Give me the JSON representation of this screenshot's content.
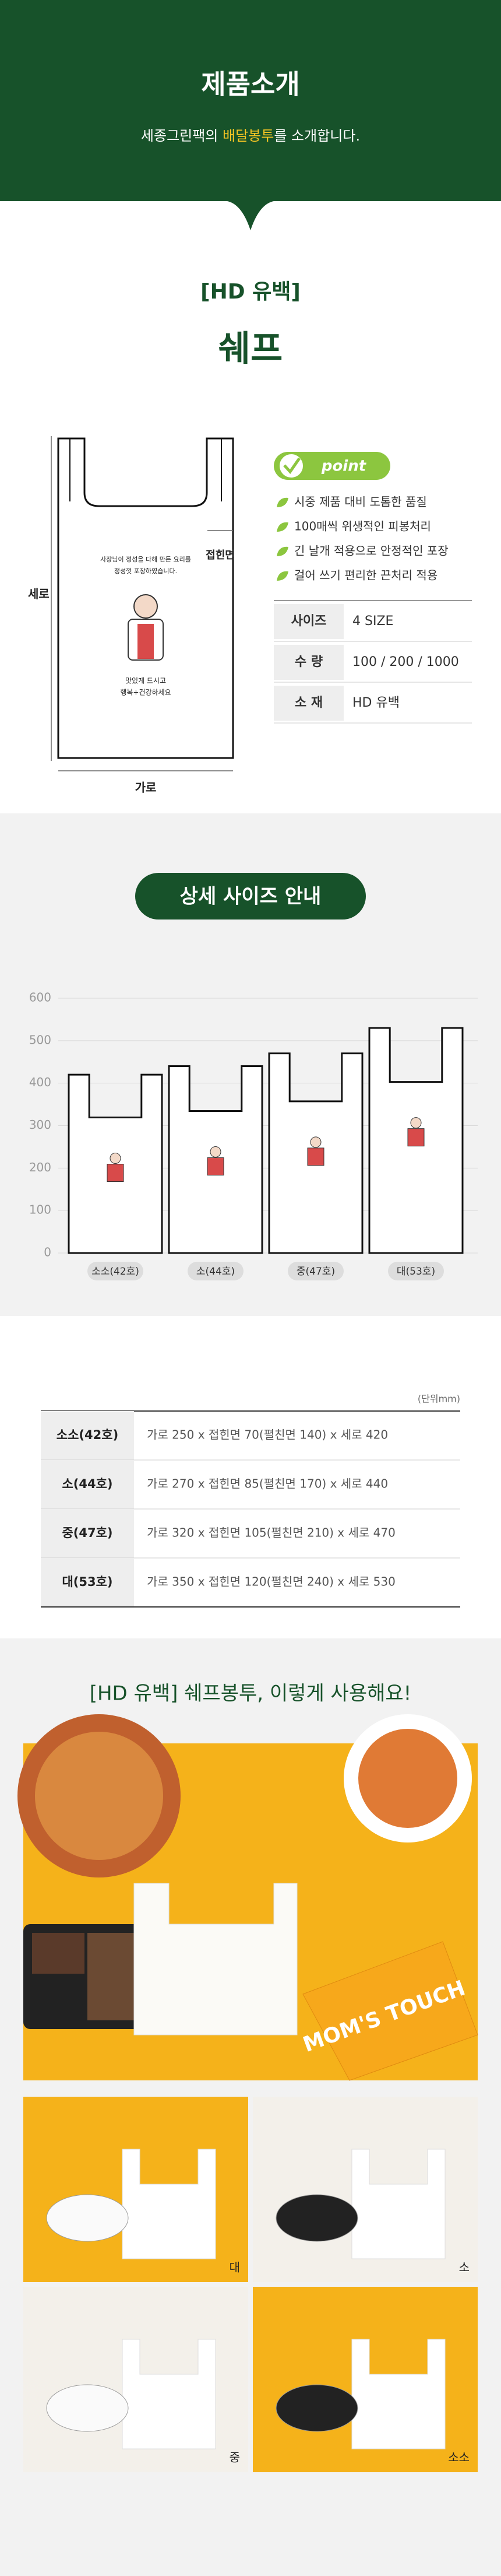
{
  "header": {
    "title": "제품소개",
    "subtitle": [
      "세종그린팩의 ",
      "배달봉투",
      "를 소개합니다."
    ]
  },
  "product": {
    "tag": "[HD 유백]",
    "name": "쉐프",
    "diagram": {
      "height_label": "세로",
      "width_label": "가로",
      "gusset_label": "접힌면",
      "bag_text": [
        "사장님이 정성을 다해 만든 요리를",
        "정성껏 포장하였습니다."
      ],
      "bag_footer": [
        "맛있게 드시고",
        "행복+건강하세요"
      ]
    },
    "point_badge": "point",
    "points": [
      "시중 제품 대비 도톰한 품질",
      "100매씩 위생적인 피봉처리",
      "긴 날개 적용으로 안정적인 포장",
      "걸어 쓰기 편리한 끈처리 적용"
    ],
    "specs": [
      [
        "사이즈",
        "4 SIZE"
      ],
      [
        "수 량",
        "100 / 200 / 1000"
      ],
      [
        "소 재",
        "HD 유백"
      ]
    ]
  },
  "chart_data": {
    "type": "bag",
    "title": "상세 사이즈 안내",
    "categories": [
      "소소(42호)",
      "소(44호)",
      "중(47호)",
      "대(53호)"
    ],
    "values": [
      420,
      440,
      470,
      530
    ],
    "ylim": [
      0,
      600
    ],
    "yticks": [
      0,
      100,
      200,
      300,
      400,
      500,
      600
    ],
    "grid": true,
    "color": "#111111"
  },
  "table": {
    "unit": "(단위mm)",
    "rows": [
      [
        "소소(42호)",
        "가로 250 x 접힌면 70(펼친면 140) x 세로 420"
      ],
      [
        "소(44호)",
        "가로 270 x 접힌면 85(펼친면 170) x 세로 440"
      ],
      [
        "중(47호)",
        "가로 320 x 접힌면 105(펼친면 210) x 세로 470"
      ],
      [
        "대(53호)",
        "가로 350 x 접힌면 120(펼친면 240) x 세로 530"
      ]
    ]
  },
  "usage": {
    "title": "[HD 유백] 쉐프봉투, 이렇게 사용해요!",
    "photo_labels": [
      "대",
      "소",
      "중",
      "소소"
    ],
    "box_text": "MOM'S TOUCH"
  }
}
